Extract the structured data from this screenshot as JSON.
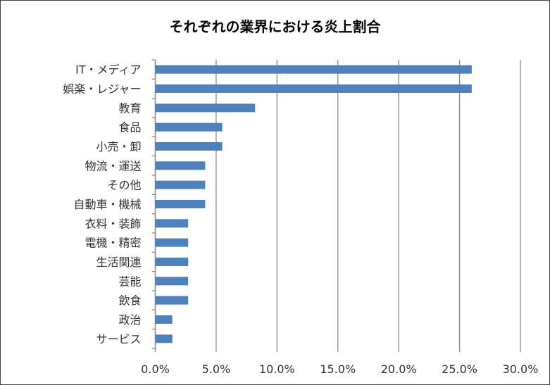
{
  "chart_data": {
    "type": "bar",
    "orientation": "horizontal",
    "title": "それぞれの業界における炎上割合",
    "categories": [
      "IT・メディア",
      "娯楽・レジャー",
      "教育",
      "食品",
      "小売・卸",
      "物流・運送",
      "その他",
      "自動車・機械",
      "衣料・装飾",
      "電機・精密",
      "生活関連",
      "芸能",
      "飲食",
      "政治",
      "サービス"
    ],
    "values": [
      26.0,
      26.0,
      8.2,
      5.5,
      5.5,
      4.1,
      4.1,
      4.1,
      2.7,
      2.7,
      2.7,
      2.7,
      2.7,
      1.4,
      1.4
    ],
    "unit": "%",
    "xlim": [
      0,
      30
    ],
    "xticks": [
      "0.0%",
      "5.0%",
      "10.0%",
      "15.0%",
      "20.0%",
      "25.0%",
      "30.0%"
    ],
    "grid": "vertical",
    "legend": "none",
    "bar_color": "#4F81BD"
  }
}
